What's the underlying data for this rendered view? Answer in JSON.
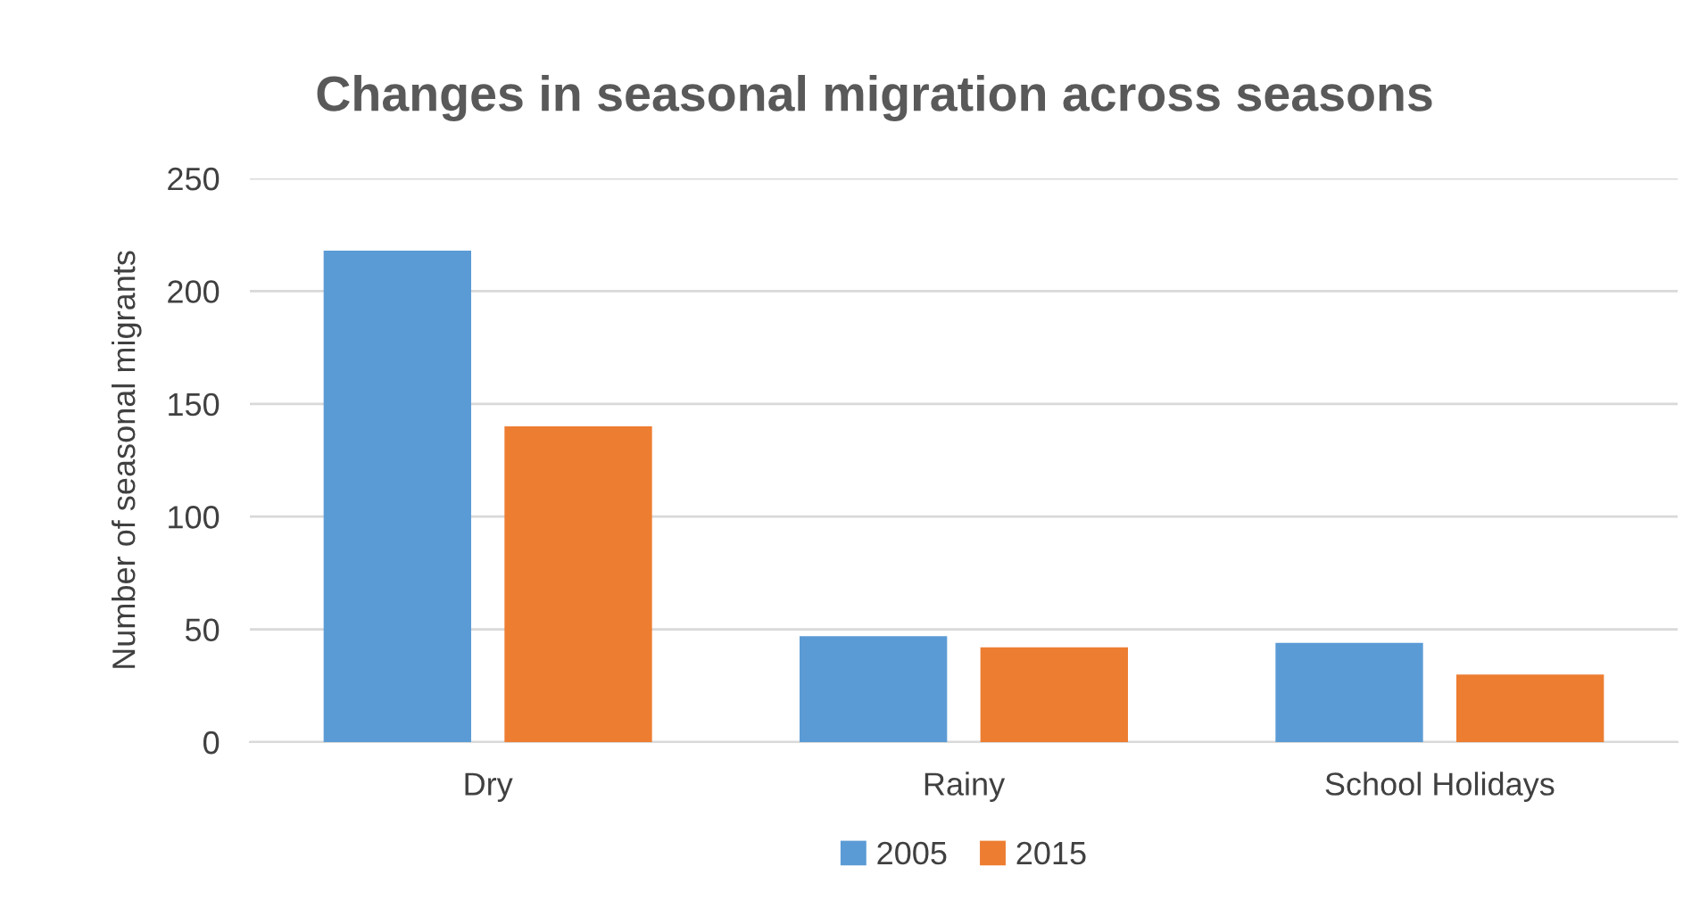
{
  "chart_data": {
    "type": "bar",
    "title": "Changes in seasonal migration across seasons",
    "ylabel": "Number of seasonal migrants",
    "categories": [
      "Dry",
      "Rainy",
      "School Holidays"
    ],
    "series": [
      {
        "name": "2005",
        "color": "#5b9bd5",
        "values": [
          218,
          47,
          44
        ]
      },
      {
        "name": "2015",
        "color": "#ed7d31",
        "values": [
          140,
          42,
          30
        ]
      }
    ],
    "ylim": [
      0,
      250
    ],
    "yticks": [
      0,
      50,
      100,
      150,
      200,
      250
    ],
    "grid": "y",
    "legend": "bottom"
  }
}
